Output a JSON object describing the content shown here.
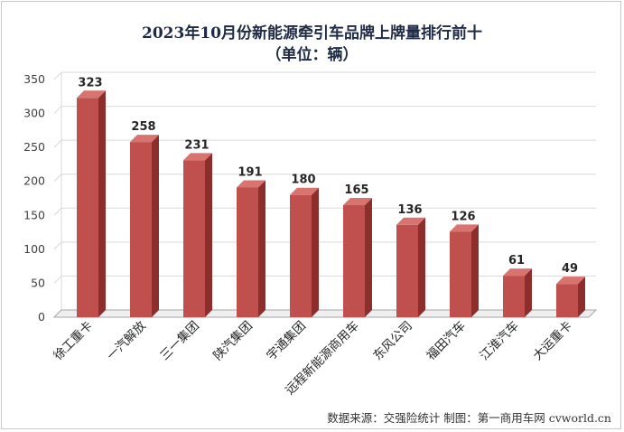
{
  "chart_data": {
    "type": "bar",
    "title": "2023年10月份新能源牵引车品牌上牌量排行前十",
    "subtitle": "（单位：辆）",
    "categories": [
      "徐工重卡",
      "一汽解放",
      "三一集团",
      "陕汽集团",
      "宇通集团",
      "远程新能源商用车",
      "东风公司",
      "福田汽车",
      "江淮汽车",
      "大运重卡"
    ],
    "values": [
      323,
      258,
      231,
      191,
      180,
      165,
      136,
      126,
      61,
      49
    ],
    "y_ticks": [
      0,
      50,
      100,
      150,
      200,
      250,
      300,
      350
    ],
    "ylim": [
      0,
      350
    ],
    "grid": true,
    "legend": "none",
    "source": "数据来源：交强险统计  制图：第一商用车网 cvworld.cn",
    "colors": {
      "bar_front": "#c0504d",
      "bar_side": "#8c2f2c",
      "bar_top": "#d9736f",
      "grid": "#d9d9d9",
      "floor": "#a6a6a6"
    }
  }
}
